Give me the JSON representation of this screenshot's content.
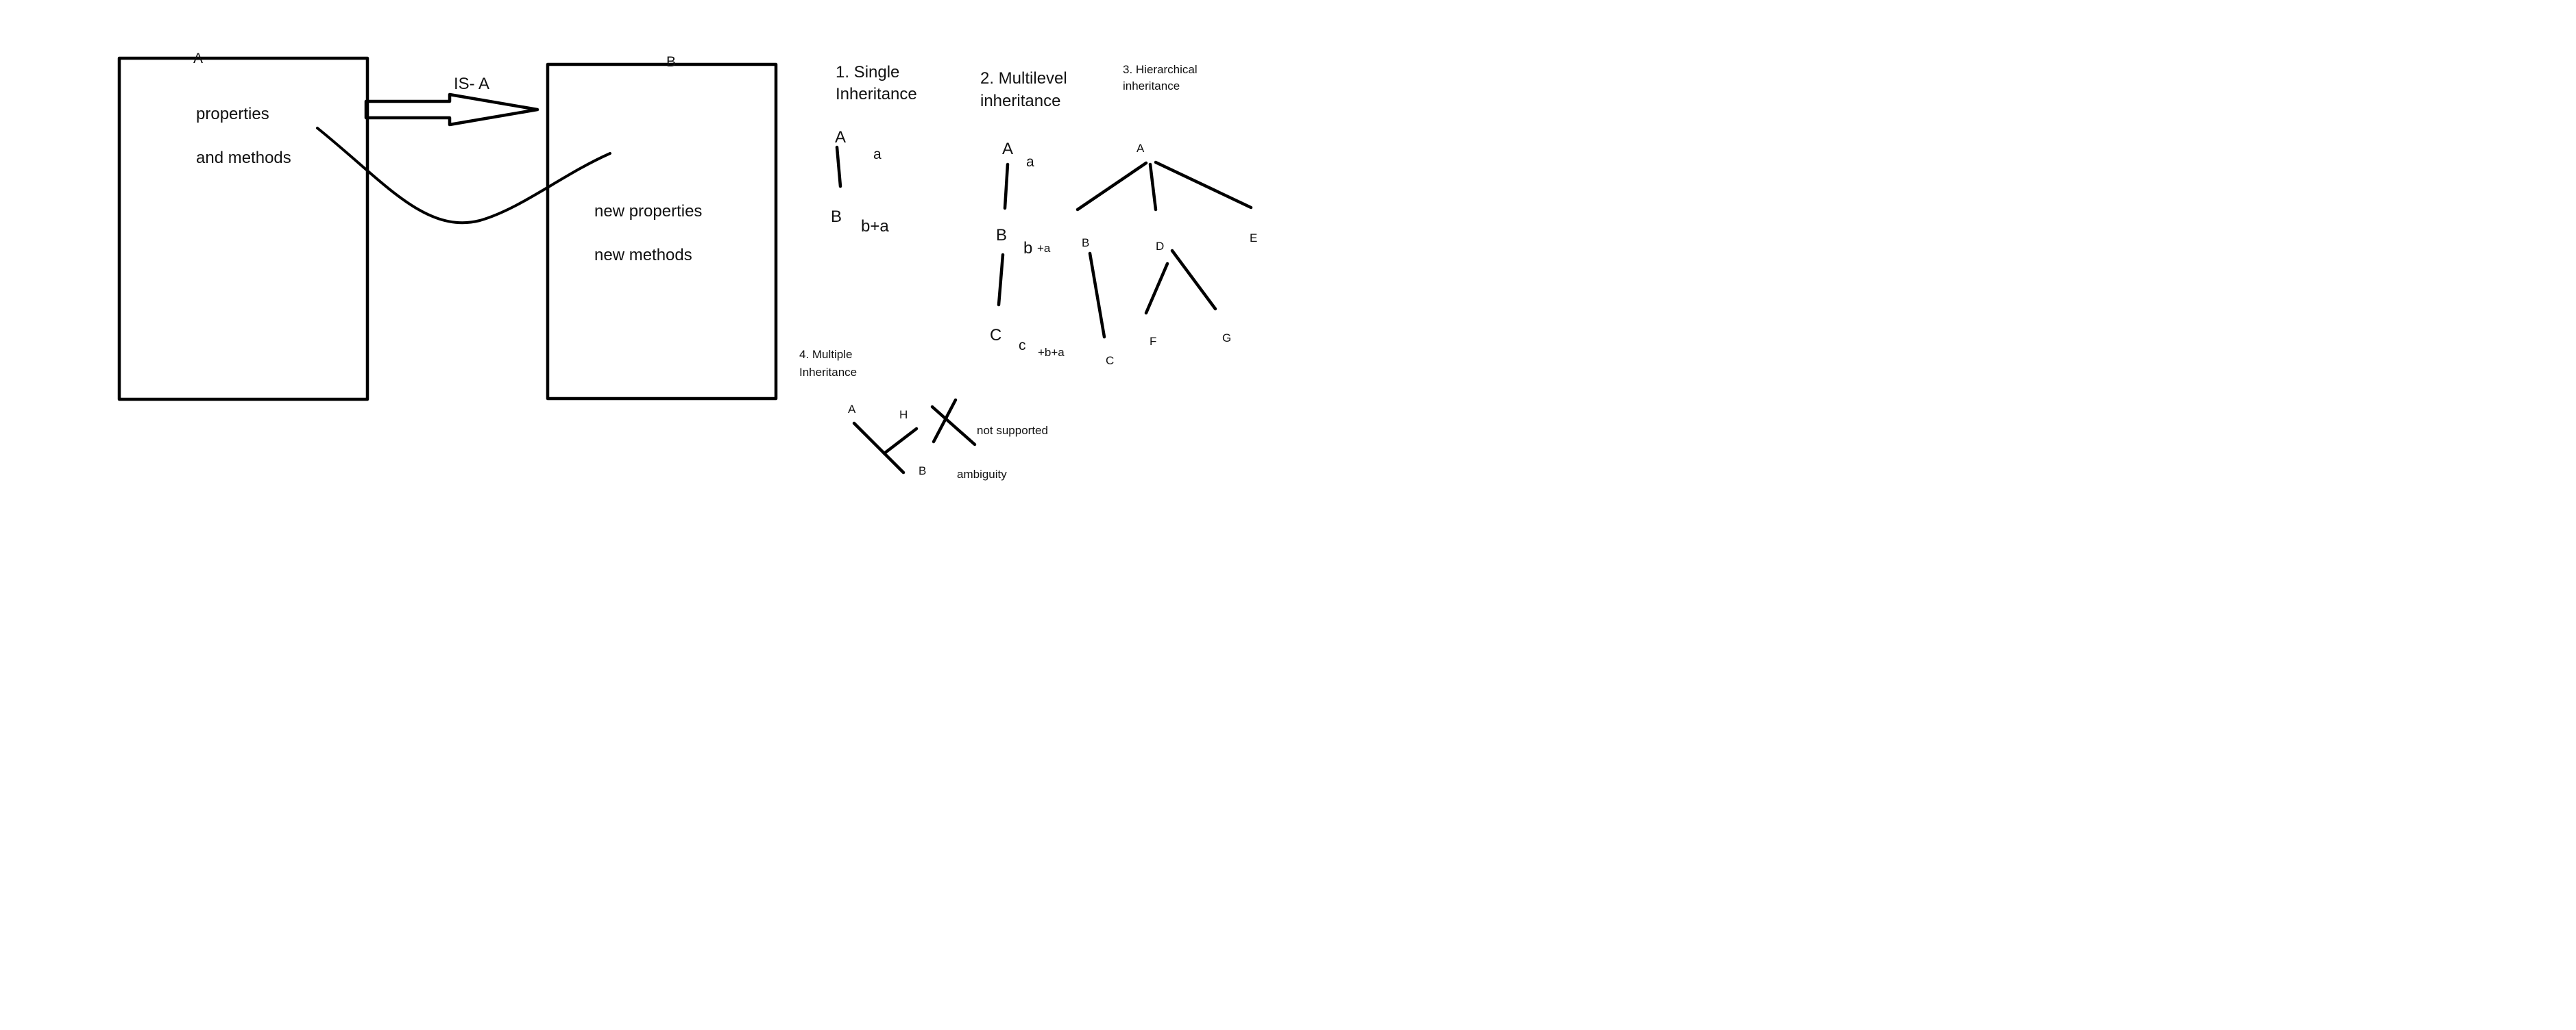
{
  "whiteboard": {
    "box_a": {
      "title": "A",
      "line1": "properties",
      "line2": "and methods"
    },
    "arrow_label": "IS- A",
    "box_b": {
      "title": "B",
      "line1": "new properties",
      "line2": "new methods"
    },
    "single": {
      "heading1": "1. Single",
      "heading2": "Inheritance",
      "node_a": "A",
      "note_a": "a",
      "node_b": "B",
      "note_b": "b+a"
    },
    "multilevel": {
      "heading1": "2. Multilevel",
      "heading2": "inheritance",
      "node_a": "A",
      "note_a": "a",
      "node_b": "B",
      "note_b": "b",
      "note_b_extra": "+a",
      "node_c": "C",
      "note_c": "c",
      "note_c_extra": "+b+a"
    },
    "hierarchical": {
      "heading1": "3. Hierarchical",
      "heading2": "inheritance",
      "node_a": "A",
      "node_b": "B",
      "node_c": "C",
      "node_d": "D",
      "node_e": "E",
      "node_f": "F",
      "node_g": "G"
    },
    "multiple": {
      "heading1": "4. Multiple",
      "heading2": "Inheritance",
      "node_a": "A",
      "node_h": "H",
      "node_b": "B",
      "status": "not supported",
      "reason": "ambiguity"
    }
  }
}
